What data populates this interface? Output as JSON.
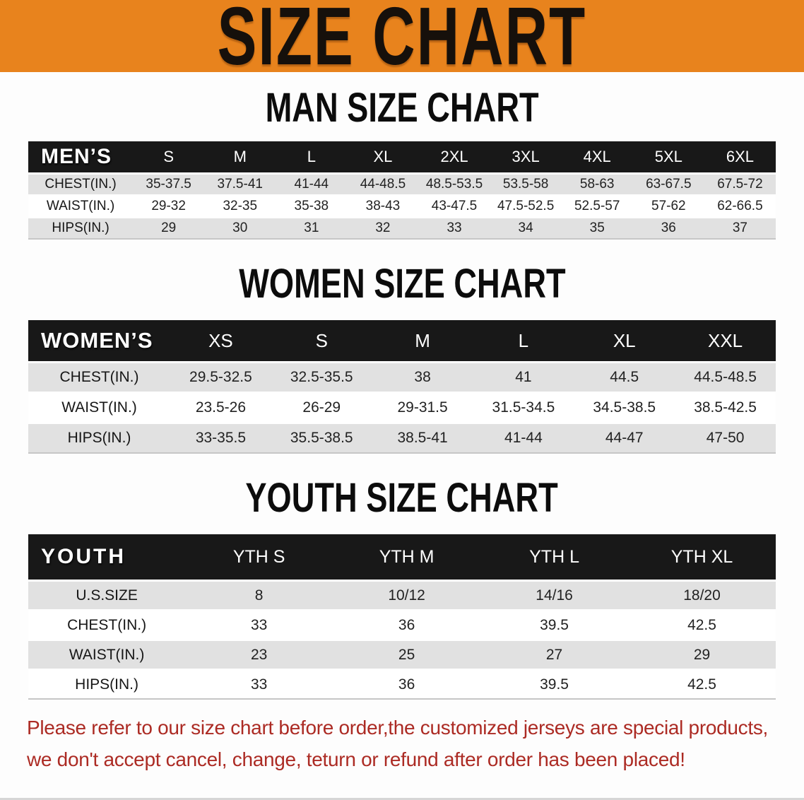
{
  "banner": {
    "title": "SIZE CHART"
  },
  "sections": [
    {
      "id": "men",
      "heading": "MAN SIZE CHART",
      "table": {
        "corner_label": "MEN’S",
        "columns": [
          "S",
          "M",
          "L",
          "XL",
          "2XL",
          "3XL",
          "4XL",
          "5XL",
          "6XL"
        ],
        "rows": [
          {
            "label": "CHEST(IN.)",
            "values": [
              "35-37.5",
              "37.5-41",
              "41-44",
              "44-48.5",
              "48.5-53.5",
              "53.5-58",
              "58-63",
              "63-67.5",
              "67.5-72"
            ]
          },
          {
            "label": "WAIST(IN.)",
            "values": [
              "29-32",
              "32-35",
              "35-38",
              "38-43",
              "43-47.5",
              "47.5-52.5",
              "52.5-57",
              "57-62",
              "62-66.5"
            ]
          },
          {
            "label": "HIPS(IN.)",
            "values": [
              "29",
              "30",
              "31",
              "32",
              "33",
              "34",
              "35",
              "36",
              "37"
            ]
          }
        ]
      }
    },
    {
      "id": "women",
      "heading": "WOMEN SIZE CHART",
      "table": {
        "corner_label": "WOMEN’S",
        "columns": [
          "XS",
          "S",
          "M",
          "L",
          "XL",
          "XXL"
        ],
        "rows": [
          {
            "label": "CHEST(IN.)",
            "values": [
              "29.5-32.5",
              "32.5-35.5",
              "38",
              "41",
              "44.5",
              "44.5-48.5"
            ]
          },
          {
            "label": "WAIST(IN.)",
            "values": [
              "23.5-26",
              "26-29",
              "29-31.5",
              "31.5-34.5",
              "34.5-38.5",
              "38.5-42.5"
            ]
          },
          {
            "label": "HIPS(IN.)",
            "values": [
              "33-35.5",
              "35.5-38.5",
              "38.5-41",
              "41-44",
              "44-47",
              "47-50"
            ]
          }
        ]
      }
    },
    {
      "id": "youth",
      "heading": "YOUTH SIZE CHART",
      "table": {
        "corner_label": "YOUTH",
        "columns": [
          "YTH S",
          "YTH M",
          "YTH L",
          "YTH XL"
        ],
        "rows": [
          {
            "label": "U.S.SIZE",
            "values": [
              "8",
              "10/12",
              "14/16",
              "18/20"
            ]
          },
          {
            "label": "CHEST(IN.)",
            "values": [
              "33",
              "36",
              "39.5",
              "42.5"
            ]
          },
          {
            "label": "WAIST(IN.)",
            "values": [
              "23",
              "25",
              "27",
              "29"
            ]
          },
          {
            "label": "HIPS(IN.)",
            "values": [
              "33",
              "36",
              "39.5",
              "42.5"
            ]
          }
        ]
      }
    }
  ],
  "footer": {
    "line1": "Please refer to our size chart before order,the customized jerseys are special products,",
    "line2": "we don't accept cancel, change, teturn or refund after order has been placed!"
  },
  "colors": {
    "banner_bg": "#E8831D",
    "header_bar_bg": "#181818",
    "row_alt_bg": "#E1E1E1",
    "footer_text": "#AC2B24"
  }
}
